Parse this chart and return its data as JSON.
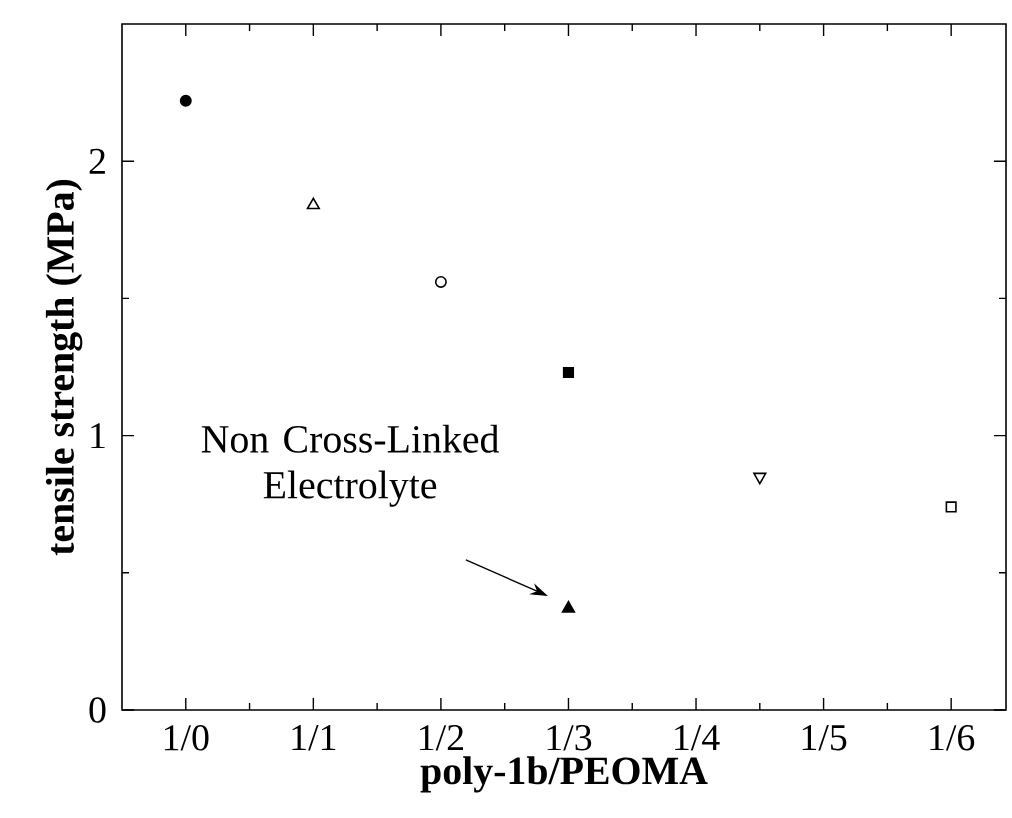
{
  "chart_data": {
    "type": "scatter",
    "xlabel": "poly-1b/PEOMA",
    "ylabel": "tensile strength (MPa)",
    "categories": [
      "1/0",
      null,
      "1/1",
      null,
      "1/2",
      null,
      "1/3",
      null,
      "1/4",
      null,
      "1/5",
      null,
      "1/6"
    ],
    "ylim": [
      0,
      2.5
    ],
    "yticks": [
      0,
      1,
      2
    ],
    "series": [
      {
        "color": "#000000",
        "marker": "circle",
        "values": [
          2.22,
          null,
          null,
          null,
          null,
          null,
          null,
          null,
          null,
          null,
          null,
          null,
          null
        ]
      },
      {
        "color": "#000000",
        "marker": "triangle_open",
        "values": [
          null,
          null,
          1.84,
          null,
          null,
          null,
          null,
          null,
          null,
          null,
          null,
          null,
          null
        ]
      },
      {
        "color": "#000000",
        "marker": "circle_open",
        "values": [
          null,
          null,
          null,
          null,
          1.56,
          null,
          null,
          null,
          null,
          null,
          null,
          null,
          null
        ]
      },
      {
        "color": "#000000",
        "marker": "square",
        "values": [
          null,
          null,
          null,
          null,
          null,
          null,
          1.23,
          null,
          null,
          null,
          null,
          null,
          null
        ]
      },
      {
        "color": "#000000",
        "marker": "triangle",
        "values": [
          null,
          null,
          null,
          null,
          null,
          null,
          0.37,
          null,
          null,
          null,
          null,
          null,
          null
        ]
      },
      {
        "color": "#000000",
        "marker": "triangle_down_open",
        "values": [
          null,
          null,
          null,
          null,
          null,
          null,
          null,
          null,
          null,
          0.85,
          null,
          null,
          null
        ]
      },
      {
        "color": "#000000",
        "marker": "square_open",
        "values": [
          null,
          null,
          null,
          null,
          null,
          null,
          null,
          null,
          null,
          null,
          null,
          null,
          0.74
        ]
      }
    ],
    "annotations": [
      "Non Cross-Linked Electrolyte"
    ]
  }
}
